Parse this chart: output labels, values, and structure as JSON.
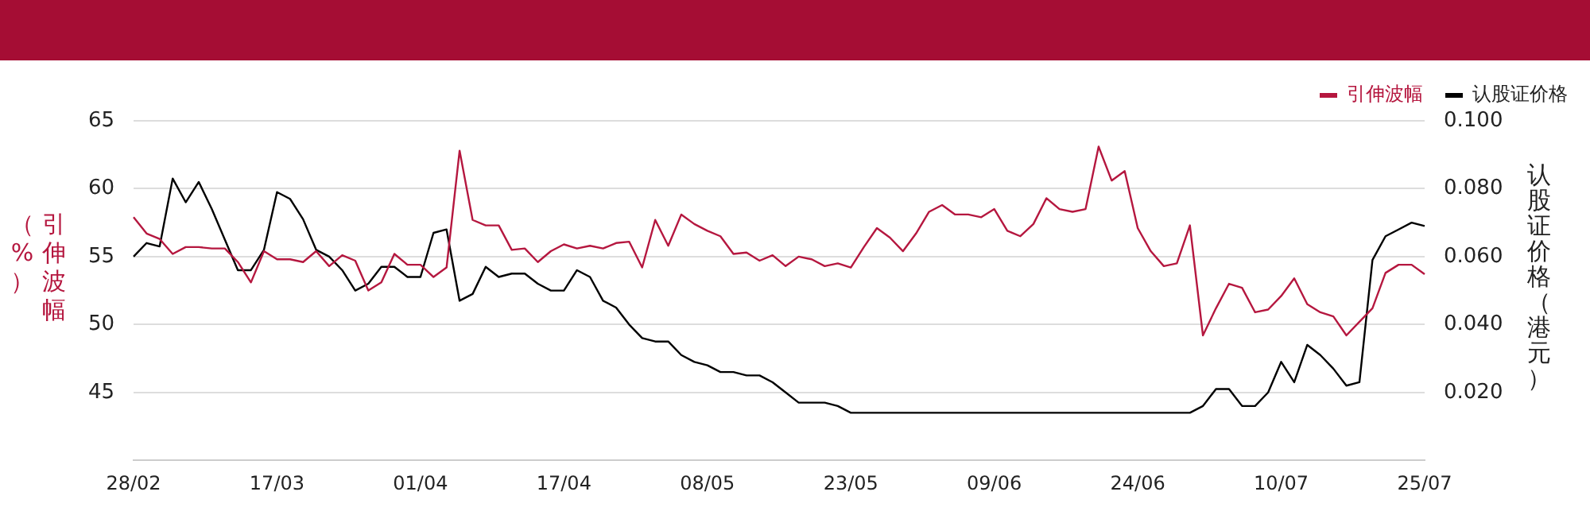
{
  "chart_data": {
    "type": "line",
    "ylabel": "引伸波幅（%）",
    "y2label": "认股证价格（港元）",
    "categories": [
      "28/02",
      null,
      null,
      null,
      null,
      null,
      null,
      null,
      null,
      null,
      null,
      "17/03",
      null,
      null,
      null,
      null,
      null,
      null,
      null,
      null,
      null,
      null,
      "01/04",
      null,
      null,
      null,
      null,
      null,
      null,
      null,
      null,
      null,
      null,
      "17/04",
      null,
      null,
      null,
      null,
      null,
      null,
      null,
      null,
      null,
      null,
      "08/05",
      null,
      null,
      null,
      null,
      null,
      null,
      null,
      null,
      null,
      null,
      "23/05",
      null,
      null,
      null,
      null,
      null,
      null,
      null,
      null,
      null,
      null,
      "09/06",
      null,
      null,
      null,
      null,
      null,
      null,
      null,
      null,
      null,
      null,
      "24/06",
      null,
      null,
      null,
      null,
      null,
      null,
      null,
      null,
      null,
      null,
      "10/07",
      null,
      null,
      null,
      null,
      null,
      null,
      null,
      null,
      null,
      null,
      "25/07"
    ],
    "series": [
      {
        "name": "引伸波幅",
        "color": "#b5173f",
        "values": [
          57.9,
          56.7,
          56.3,
          55.2,
          55.7,
          55.7,
          55.6,
          55.6,
          54.6,
          53.1,
          55.4,
          54.8,
          54.8,
          54.6,
          55.4,
          54.3,
          55.1,
          54.7,
          52.5,
          53.1,
          55.2,
          54.4,
          54.4,
          53.5,
          54.2,
          62.8,
          57.7,
          57.3,
          57.3,
          55.5,
          55.6,
          54.6,
          55.4,
          55.9,
          55.6,
          55.8,
          55.6,
          56.0,
          56.1,
          54.2,
          57.7,
          55.8,
          58.1,
          57.4,
          56.9,
          56.5,
          55.2,
          55.3,
          54.7,
          55.1,
          54.3,
          55.0,
          54.8,
          54.3,
          54.5,
          54.2,
          55.7,
          57.1,
          56.4,
          55.4,
          56.7,
          58.3,
          58.8,
          58.1,
          58.1,
          57.9,
          58.5,
          56.9,
          56.5,
          57.4,
          59.3,
          58.5,
          58.3,
          58.5,
          63.1,
          60.6,
          61.3,
          57.1,
          55.4,
          54.3,
          54.5,
          57.3,
          49.2,
          51.2,
          53.0,
          52.7,
          50.9,
          51.1,
          52.1,
          53.4,
          51.5,
          50.9,
          50.6,
          49.2,
          50.2,
          51.2,
          53.8,
          54.4,
          54.4,
          53.7
        ]
      },
      {
        "name": "认股证价格",
        "color": "#000000",
        "axis": "y2",
        "values": [
          0.06,
          0.064,
          0.063,
          0.083,
          0.076,
          0.082,
          0.074,
          0.065,
          0.056,
          0.056,
          0.062,
          0.079,
          0.077,
          0.071,
          0.062,
          0.06,
          0.056,
          0.05,
          0.052,
          0.057,
          0.057,
          0.054,
          0.054,
          0.067,
          0.068,
          0.047,
          0.049,
          0.057,
          0.054,
          0.055,
          0.055,
          0.052,
          0.05,
          0.05,
          0.056,
          0.054,
          0.047,
          0.045,
          0.04,
          0.036,
          0.035,
          0.035,
          0.031,
          0.029,
          0.028,
          0.026,
          0.026,
          0.025,
          0.025,
          0.023,
          0.02,
          0.017,
          0.017,
          0.017,
          0.016,
          0.014,
          0.014,
          0.014,
          0.014,
          0.014,
          0.014,
          0.014,
          0.014,
          0.014,
          0.014,
          0.014,
          0.014,
          0.014,
          0.014,
          0.014,
          0.014,
          0.014,
          0.014,
          0.014,
          0.014,
          0.014,
          0.014,
          0.014,
          0.014,
          0.014,
          0.014,
          0.014,
          0.016,
          0.021,
          0.021,
          0.016,
          0.016,
          0.02,
          0.029,
          0.023,
          0.034,
          0.031,
          0.027,
          0.022,
          0.023,
          0.059,
          0.066,
          0.068,
          0.07,
          0.069
        ]
      }
    ],
    "ylim": [
      40,
      65
    ],
    "yticks": [
      45,
      50,
      55,
      60,
      65
    ],
    "y2lim": [
      0,
      0.1
    ],
    "y2ticks": [
      {
        "value": 0.02,
        "label": "0.020"
      },
      {
        "value": 0.04,
        "label": "0.040"
      },
      {
        "value": 0.06,
        "label": "0.060"
      },
      {
        "value": 0.08,
        "label": "0.080"
      },
      {
        "value": 0.1,
        "label": "0.100"
      }
    ],
    "grid": "y",
    "legend": "top right",
    "marker": "none",
    "line_style": "solid"
  }
}
